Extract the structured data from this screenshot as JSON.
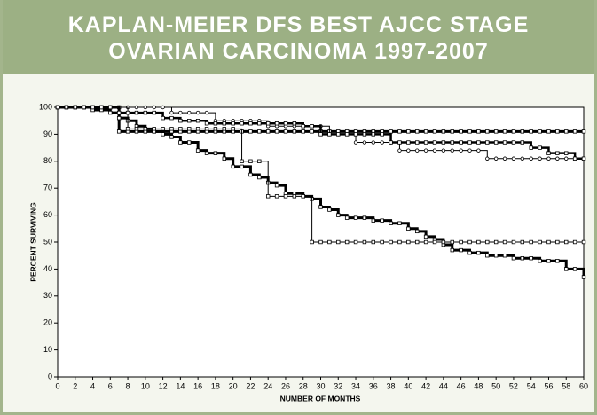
{
  "chart_data": {
    "type": "line",
    "title": [
      "KAPLAN-MEIER DFS BEST AJCC STAGE",
      "OVARIAN CARCINOMA 1997-2007"
    ],
    "x_label": "NUMBER OF MONTHS",
    "y_label": "PERCENT SURVIVING",
    "x": [
      0,
      1,
      2,
      3,
      4,
      5,
      6,
      7,
      8,
      9,
      10,
      11,
      12,
      13,
      14,
      15,
      16,
      17,
      18,
      19,
      20,
      21,
      22,
      23,
      24,
      25,
      26,
      27,
      28,
      29,
      30,
      31,
      32,
      33,
      34,
      35,
      36,
      37,
      38,
      39,
      40,
      41,
      42,
      43,
      44,
      45,
      46,
      47,
      48,
      49,
      50,
      51,
      52,
      53,
      54,
      55,
      56,
      57,
      58,
      59,
      60
    ],
    "series": [
      {
        "color": "#000000",
        "line_width": 3,
        "marker": "square",
        "values": [
          100,
          100,
          100,
          100,
          100,
          100,
          100,
          91,
          91,
          91,
          91,
          91,
          91,
          91,
          91,
          91,
          91,
          91,
          91,
          91,
          91,
          91,
          91,
          91,
          91,
          91,
          91,
          91,
          91,
          91,
          91,
          91,
          91,
          91,
          91,
          91,
          91,
          91,
          91,
          91,
          91,
          91,
          91,
          91,
          91,
          91,
          91,
          91,
          91,
          91,
          91,
          91,
          91,
          91,
          91,
          91,
          91,
          91,
          91,
          91,
          91
        ]
      },
      {
        "color": "#000000",
        "line_width": 3,
        "marker": "square",
        "values": [
          100,
          100,
          100,
          100,
          99,
          99,
          98,
          96,
          95,
          93,
          92,
          91,
          90,
          89,
          87,
          87,
          84,
          83,
          83,
          81,
          78,
          78,
          75,
          74,
          72,
          71,
          68,
          68,
          67,
          66,
          63,
          62,
          60,
          59,
          59,
          59,
          58,
          58,
          57,
          57,
          55,
          54,
          52,
          51,
          49,
          47,
          47,
          46,
          46,
          45,
          45,
          45,
          44,
          44,
          44,
          43,
          43,
          43,
          40,
          40,
          37
        ]
      },
      {
        "color": "#000000",
        "line_width": 1,
        "marker": "circle",
        "values": [
          100,
          100,
          100,
          100,
          100,
          100,
          100,
          100,
          100,
          100,
          100,
          100,
          100,
          98,
          98,
          98,
          98,
          98,
          95,
          95,
          95,
          95,
          95,
          95,
          93,
          93,
          93,
          93,
          93,
          93,
          93,
          90,
          90,
          90,
          87,
          87,
          87,
          87,
          87,
          84,
          84,
          84,
          84,
          84,
          84,
          84,
          84,
          84,
          84,
          81,
          81,
          81,
          81,
          81,
          81,
          81,
          81,
          81,
          81,
          81,
          81
        ]
      },
      {
        "color": "#000000",
        "line_width": 1,
        "marker": "square",
        "values": [
          100,
          100,
          100,
          100,
          100,
          100,
          100,
          100,
          92,
          92,
          92,
          92,
          92,
          92,
          92,
          92,
          92,
          92,
          92,
          92,
          92,
          80,
          80,
          80,
          67,
          67,
          67,
          67,
          67,
          50,
          50,
          50,
          50,
          50,
          50,
          50,
          50,
          50,
          50,
          50,
          50,
          50,
          50,
          50,
          50,
          50,
          50,
          50,
          50,
          50,
          50,
          50,
          50,
          50,
          50,
          50,
          50,
          50,
          50,
          50,
          50
        ]
      },
      {
        "color": "#000000",
        "line_width": 2.5,
        "marker": "square",
        "values": [
          100,
          100,
          100,
          100,
          100,
          100,
          100,
          98,
          98,
          98,
          98,
          98,
          96,
          96,
          95,
          95,
          95,
          94,
          94,
          94,
          94,
          94,
          94,
          94,
          94,
          94,
          94,
          94,
          93,
          93,
          90,
          90,
          90,
          90,
          90,
          90,
          90,
          90,
          87,
          87,
          87,
          87,
          87,
          87,
          87,
          87,
          87,
          87,
          87,
          87,
          87,
          87,
          87,
          87,
          85,
          85,
          83,
          83,
          83,
          81,
          81
        ]
      }
    ],
    "xlim": [
      0,
      60
    ],
    "ylim": [
      0,
      100
    ],
    "xticks": [
      0,
      2,
      4,
      6,
      8,
      10,
      12,
      14,
      16,
      18,
      20,
      22,
      24,
      26,
      28,
      30,
      32,
      34,
      36,
      38,
      40,
      42,
      44,
      46,
      48,
      50,
      52,
      54,
      56,
      58,
      60
    ],
    "yticks": [
      0,
      10,
      20,
      30,
      40,
      50,
      60,
      70,
      80,
      90,
      100
    ]
  }
}
